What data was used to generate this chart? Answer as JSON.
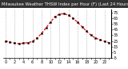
{
  "title": "Milwaukee Weather THSW Index per Hour (F) (Last 24 Hours)",
  "hours": [
    0,
    1,
    2,
    3,
    4,
    5,
    6,
    7,
    8,
    9,
    10,
    11,
    12,
    13,
    14,
    15,
    16,
    17,
    18,
    19,
    20,
    21,
    22,
    23
  ],
  "values": [
    25,
    23,
    21,
    20,
    21,
    22,
    24,
    30,
    38,
    48,
    58,
    68,
    72,
    73,
    70,
    65,
    58,
    50,
    42,
    35,
    30,
    27,
    24,
    22
  ],
  "line_color": "#ff0000",
  "marker_color": "#000000",
  "bg_color": "#ffffff",
  "plot_bg": "#ffffff",
  "title_bg": "#333333",
  "title_fg": "#ffffff",
  "grid_color": "#999999",
  "ylim": [
    -5,
    80
  ],
  "yticks": [
    -5,
    5,
    15,
    25,
    35,
    45,
    55,
    65,
    75
  ],
  "ytick_labels": [
    "-5",
    "5",
    "15",
    "25",
    "35",
    "45",
    "55",
    "65",
    "75"
  ],
  "xlim": [
    -0.5,
    23.5
  ],
  "grid_x_positions": [
    0,
    2,
    4,
    6,
    8,
    10,
    12,
    14,
    16,
    18,
    20,
    22
  ],
  "title_fontsize": 3.8,
  "tick_fontsize": 3.5,
  "line_width": 0.9,
  "marker_size": 1.4,
  "line_dash": [
    2.5,
    1.5
  ]
}
